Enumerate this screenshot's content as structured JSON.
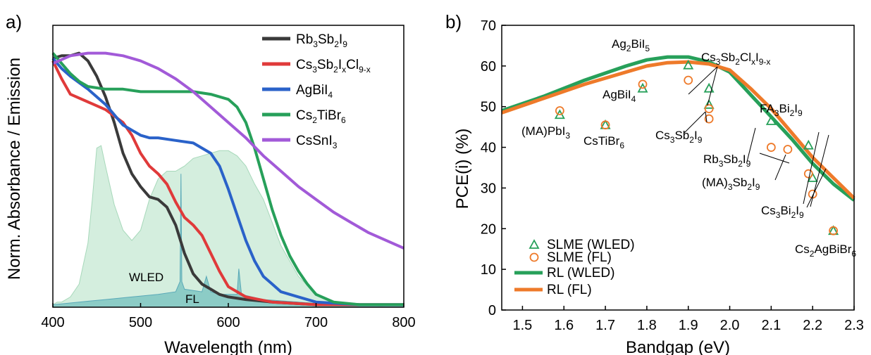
{
  "panels": [
    {
      "panel_label": "a)",
      "chart_data": {
        "type": "line",
        "xlabel": "Wavelength (nm)",
        "ylabel": "Norm. Absorbance / Emission",
        "xlim": [
          400,
          800
        ],
        "xticks": [
          "400",
          "500",
          "600",
          "700",
          "800"
        ],
        "ylim": [
          0,
          1
        ],
        "grid": false,
        "legend_position": "top-right",
        "series": [
          {
            "name": "Rb3Sb2I9",
            "color": "#3a3a3a",
            "x": [
              400,
              410,
              420,
              430,
              440,
              450,
              460,
              470,
              480,
              490,
              500,
              510,
              520,
              530,
              540,
              550,
              560,
              570,
              580,
              590,
              600,
              620,
              650,
              700,
              750,
              800
            ],
            "y": [
              0.97,
              0.98,
              0.98,
              0.99,
              0.96,
              0.9,
              0.82,
              0.72,
              0.6,
              0.52,
              0.47,
              0.43,
              0.42,
              0.39,
              0.32,
              0.21,
              0.13,
              0.09,
              0.07,
              0.05,
              0.04,
              0.03,
              0.02,
              0.01,
              0.01,
              0.01
            ]
          },
          {
            "name": "Cs3Sb2IxCl9-x",
            "color": "#e03a3a",
            "x": [
              400,
              410,
              420,
              440,
              460,
              480,
              490,
              500,
              510,
              520,
              530,
              540,
              550,
              560,
              570,
              580,
              590,
              600,
              620,
              650,
              700,
              750,
              800
            ],
            "y": [
              0.96,
              0.89,
              0.83,
              0.8,
              0.77,
              0.72,
              0.67,
              0.6,
              0.55,
              0.52,
              0.48,
              0.41,
              0.35,
              0.32,
              0.28,
              0.21,
              0.14,
              0.08,
              0.04,
              0.02,
              0.01,
              0.01,
              0.01
            ]
          },
          {
            "name": "AgBiI4",
            "color": "#2a62c9",
            "x": [
              400,
              410,
              420,
              440,
              460,
              480,
              490,
              500,
              510,
              520,
              540,
              560,
              580,
              590,
              600,
              610,
              620,
              630,
              640,
              650,
              660,
              680,
              700,
              750,
              800
            ],
            "y": [
              0.97,
              0.93,
              0.9,
              0.85,
              0.79,
              0.71,
              0.69,
              0.67,
              0.66,
              0.66,
              0.65,
              0.64,
              0.6,
              0.55,
              0.46,
              0.36,
              0.26,
              0.18,
              0.12,
              0.09,
              0.06,
              0.04,
              0.02,
              0.01,
              0.01
            ]
          },
          {
            "name": "Cs2TiBr6",
            "color": "#27a05a",
            "x": [
              400,
              410,
              420,
              430,
              440,
              460,
              480,
              500,
              520,
              540,
              560,
              580,
              600,
              610,
              620,
              630,
              640,
              650,
              660,
              670,
              680,
              690,
              700,
              720,
              750,
              800
            ],
            "y": [
              0.99,
              0.95,
              0.91,
              0.88,
              0.86,
              0.85,
              0.85,
              0.84,
              0.84,
              0.84,
              0.84,
              0.83,
              0.81,
              0.78,
              0.72,
              0.62,
              0.5,
              0.38,
              0.28,
              0.2,
              0.14,
              0.09,
              0.05,
              0.02,
              0.01,
              0.01
            ]
          },
          {
            "name": "CsSnI3",
            "color": "#a25ad8",
            "x": [
              400,
              420,
              440,
              460,
              480,
              500,
              520,
              540,
              560,
              580,
              600,
              620,
              640,
              660,
              680,
              700,
              720,
              740,
              760,
              780,
              800
            ],
            "y": [
              0.95,
              0.98,
              0.99,
              0.99,
              0.98,
              0.96,
              0.93,
              0.89,
              0.84,
              0.78,
              0.72,
              0.66,
              0.59,
              0.53,
              0.47,
              0.42,
              0.37,
              0.33,
              0.29,
              0.26,
              0.23
            ]
          }
        ],
        "filled_spectra": [
          {
            "name": "WLED",
            "color": "#cdebd8",
            "stroke": "#a7d8ba",
            "x": [
              400,
              405,
              410,
              420,
              430,
              440,
              445,
              450,
              455,
              460,
              470,
              480,
              490,
              500,
              510,
              520,
              530,
              540,
              550,
              560,
              570,
              580,
              590,
              600,
              610,
              620,
              630,
              640,
              650,
              660,
              680,
              700,
              720,
              740,
              760,
              780,
              800
            ],
            "y": [
              0.01,
              0.02,
              0.02,
              0.04,
              0.09,
              0.25,
              0.42,
              0.62,
              0.63,
              0.55,
              0.4,
              0.3,
              0.26,
              0.3,
              0.42,
              0.5,
              0.53,
              0.53,
              0.55,
              0.58,
              0.59,
              0.6,
              0.61,
              0.61,
              0.59,
              0.55,
              0.48,
              0.42,
              0.33,
              0.24,
              0.12,
              0.05,
              0.02,
              0.01,
              0.01,
              0.0,
              0.0
            ]
          },
          {
            "name": "FL",
            "color": "#7fc6c2",
            "stroke": "#5aa9b8",
            "x": [
              400,
              430,
              460,
              490,
              520,
              540,
              545,
              546,
              547,
              550,
              570,
              575,
              580,
              590,
              610,
              612,
              615,
              640,
              680,
              720,
              760,
              800
            ],
            "y": [
              0.01,
              0.02,
              0.03,
              0.04,
              0.05,
              0.06,
              0.1,
              0.52,
              0.1,
              0.07,
              0.06,
              0.12,
              0.06,
              0.05,
              0.05,
              0.15,
              0.05,
              0.03,
              0.02,
              0.01,
              0.01,
              0.01
            ]
          }
        ],
        "spectra_labels": [
          "WLED",
          "FL"
        ]
      }
    },
    {
      "panel_label": "b)",
      "chart_data": {
        "type": "scatter",
        "xlabel": "Bandgap (eV)",
        "ylabel": "PCE(i) (%)",
        "xlim": [
          1.45,
          2.3
        ],
        "ylim": [
          0,
          70
        ],
        "xticks": [
          "1.5",
          "1.6",
          "1.7",
          "1.8",
          "1.9",
          "2.0",
          "2.1",
          "2.2",
          "2.3"
        ],
        "yticks": [
          "0",
          "10",
          "20",
          "30",
          "40",
          "50",
          "60",
          "70"
        ],
        "grid": false,
        "legend_position": "bottom-left",
        "legend": [
          "SLME (WLED)",
          "SLME (FL)",
          "RL (WLED)",
          "RL (FL)"
        ],
        "series": [
          {
            "name": "SLME (WLED)",
            "marker": "triangle",
            "color": "#27a05a",
            "points": [
              [
                1.59,
                48.0
              ],
              [
                1.7,
                45.5
              ],
              [
                1.79,
                54.5
              ],
              [
                1.9,
                60.2
              ],
              [
                1.95,
                54.5
              ],
              [
                1.95,
                50.5
              ],
              [
                2.1,
                46.5
              ],
              [
                2.19,
                40.5
              ],
              [
                2.2,
                32.5
              ],
              [
                2.25,
                19.5
              ]
            ]
          },
          {
            "name": "SLME (FL)",
            "marker": "circle",
            "color": "#ee7a2a",
            "points": [
              [
                1.59,
                49.0
              ],
              [
                1.7,
                45.5
              ],
              [
                1.79,
                55.5
              ],
              [
                1.9,
                56.5
              ],
              [
                1.95,
                49.5
              ],
              [
                1.95,
                47.0
              ],
              [
                2.1,
                40.0
              ],
              [
                2.14,
                39.5
              ],
              [
                2.19,
                33.5
              ],
              [
                2.2,
                28.5
              ],
              [
                2.25,
                19.5
              ]
            ]
          },
          {
            "name": "RL (WLED)",
            "line": true,
            "color": "#27a05a",
            "points": [
              [
                1.45,
                49.0
              ],
              [
                1.55,
                52.5
              ],
              [
                1.65,
                56.5
              ],
              [
                1.75,
                60.0
              ],
              [
                1.8,
                61.5
              ],
              [
                1.85,
                62.2
              ],
              [
                1.9,
                62.2
              ],
              [
                1.95,
                61.0
              ],
              [
                2.0,
                58.5
              ],
              [
                2.05,
                53.0
              ],
              [
                2.1,
                47.5
              ],
              [
                2.15,
                42.0
              ],
              [
                2.2,
                36.0
              ],
              [
                2.25,
                31.0
              ],
              [
                2.3,
                27.0
              ]
            ]
          },
          {
            "name": "RL (FL)",
            "line": true,
            "color": "#ee7a2a",
            "points": [
              [
                1.45,
                48.5
              ],
              [
                1.55,
                52.0
              ],
              [
                1.65,
                55.5
              ],
              [
                1.75,
                58.5
              ],
              [
                1.8,
                60.0
              ],
              [
                1.85,
                60.8
              ],
              [
                1.9,
                61.0
              ],
              [
                1.95,
                60.5
              ],
              [
                2.0,
                59.0
              ],
              [
                2.05,
                54.5
              ],
              [
                2.1,
                49.5
              ],
              [
                2.15,
                43.5
              ],
              [
                2.2,
                37.5
              ],
              [
                2.25,
                32.5
              ],
              [
                2.3,
                27.5
              ]
            ]
          }
        ],
        "annotations": [
          {
            "label": "Ag2BiI5",
            "main": "Ag",
            "subscripts": [
              [
                "2"
              ],
              [
                "BiI",
                "5"
              ]
            ]
          },
          {
            "label": "Cs3Sb2ClxI9-x"
          },
          {
            "label": "AgBiI4"
          },
          {
            "label": "(MA)PbI3"
          },
          {
            "label": "CsTiBr6"
          },
          {
            "label": "Cs3Sb2I9"
          },
          {
            "label": "FA3Bi2I9"
          },
          {
            "label": "Rb3Sb2I9"
          },
          {
            "label": "(MA)3Sb2I9"
          },
          {
            "label": "Cs3Bi2I9"
          },
          {
            "label": "Cs2AgBiBr6"
          }
        ]
      }
    }
  ]
}
